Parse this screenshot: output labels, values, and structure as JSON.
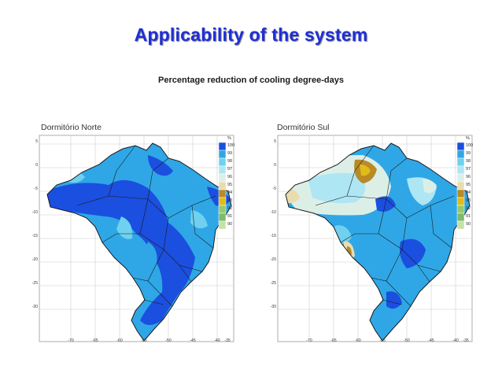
{
  "title": "Applicability of the system",
  "subtitle": "Percentage reduction of cooling degree-days",
  "maps": [
    {
      "title": "Dormitório Norte",
      "y_ticks": [
        "5",
        "0",
        "-5",
        "-10",
        "-15",
        "-20",
        "-25",
        "-30"
      ],
      "x_ticks": [
        "-70",
        "-65",
        "-60",
        "-55",
        "-50",
        "-45",
        "-40",
        "-35"
      ]
    },
    {
      "title": "Dormitório Sul",
      "y_ticks": [
        "5",
        "0",
        "-5",
        "-10",
        "-15",
        "-20",
        "-25",
        "-30"
      ],
      "x_ticks": [
        "-70",
        "-65",
        "-60",
        "-55",
        "-50",
        "-45",
        "-40",
        "-35"
      ]
    }
  ],
  "legend": {
    "unit": "%",
    "levels": [
      "100",
      "99",
      "98",
      "97",
      "96",
      "95",
      "94",
      "93",
      "92",
      "91",
      "90"
    ],
    "colors": [
      "#1b4fe0",
      "#2fa7e6",
      "#6fd1ef",
      "#aee6f4",
      "#dcefe6",
      "#e9dcae",
      "#b98a25",
      "#e0bc1a",
      "#98c86a",
      "#7dbb6a",
      "#c6e1a6"
    ]
  },
  "colors": {
    "title": "#1f2fd8",
    "ocean": "#ffffff",
    "grid": "#c9c9c9",
    "border": "#1a1a1a"
  }
}
